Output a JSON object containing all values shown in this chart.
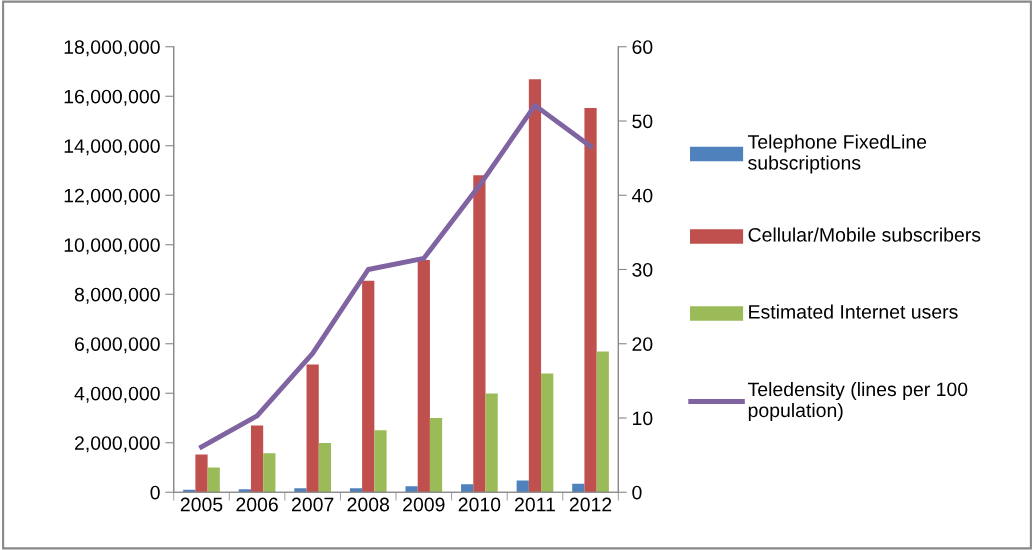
{
  "chart_data": {
    "type": "bar",
    "categories": [
      "2005",
      "2006",
      "2007",
      "2008",
      "2009",
      "2010",
      "2011",
      "2012"
    ],
    "series": [
      {
        "name": "Telephone FixedLine subscriptions",
        "color": "#4f81bd",
        "values": [
          100000,
          120000,
          160000,
          160000,
          240000,
          320000,
          470000,
          340000
        ]
      },
      {
        "name": "Cellular/Mobile subscribers",
        "color": "#c0504d",
        "values": [
          1530000,
          2700000,
          5160000,
          8550000,
          9380000,
          12810000,
          16690000,
          15530000
        ]
      },
      {
        "name": "Estimated Internet users",
        "color": "#9bbb59",
        "values": [
          1000000,
          1580000,
          1990000,
          2500000,
          3000000,
          3990000,
          4800000,
          5690000
        ]
      },
      {
        "name": "Teledensity (lines per 100 population)",
        "color": "#8064a2",
        "type": "line",
        "axis": "y2",
        "values": [
          6.1,
          10.3,
          18.7,
          30.0,
          31.5,
          41.3,
          52.1,
          46.6
        ]
      }
    ],
    "ylim": [
      0,
      18000000
    ],
    "yticks": [
      {
        "value": 0,
        "label": "0"
      },
      {
        "value": 2000000,
        "label": "2,000,000"
      },
      {
        "value": 4000000,
        "label": "4,000,000"
      },
      {
        "value": 6000000,
        "label": "6,000,000"
      },
      {
        "value": 8000000,
        "label": "8,000,000"
      },
      {
        "value": 10000000,
        "label": "10,000,000"
      },
      {
        "value": 12000000,
        "label": "12,000,000"
      },
      {
        "value": 14000000,
        "label": "14,000,000"
      },
      {
        "value": 16000000,
        "label": "16,000,000"
      },
      {
        "value": 18000000,
        "label": "18,000,000"
      }
    ],
    "y2lim": [
      0,
      60
    ],
    "y2ticks": [
      0,
      10,
      20,
      30,
      40,
      50,
      60
    ],
    "grid": false,
    "legend": "right",
    "marker": "none"
  }
}
